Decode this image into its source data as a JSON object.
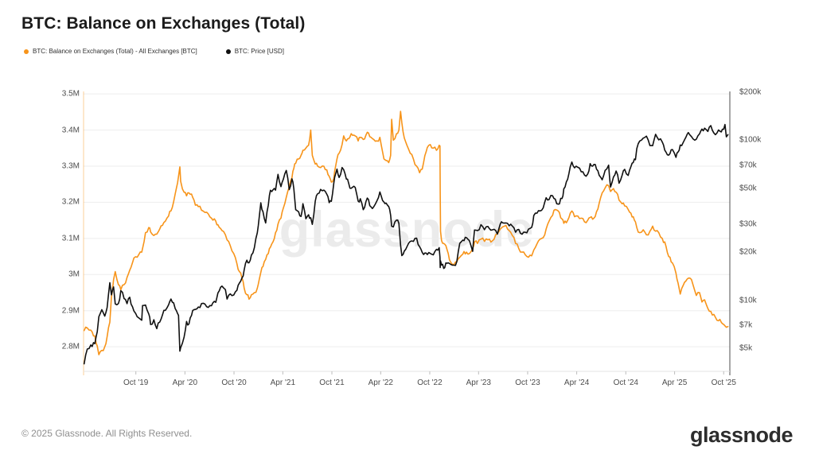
{
  "header": {
    "title": "BTC: Balance on Exchanges (Total)"
  },
  "watermark": {
    "text": "glassnode"
  },
  "footer": {
    "copyright": "© 2025 Glassnode. All Rights Reserved.",
    "brand": "glassnode"
  },
  "chart_data": {
    "type": "line",
    "title": "BTC: Balance on Exchanges (Total)",
    "grid": {
      "horizontal": true,
      "color": "#ededed"
    },
    "x_axis": {
      "scale": "time",
      "domain": [
        "2019-03-20",
        "2025-10-24"
      ],
      "ticks": [
        {
          "label": "Oct '19",
          "date": "2019-10-01"
        },
        {
          "label": "Apr '20",
          "date": "2020-04-01"
        },
        {
          "label": "Oct '20",
          "date": "2020-10-01"
        },
        {
          "label": "Apr '21",
          "date": "2021-04-01"
        },
        {
          "label": "Oct '21",
          "date": "2021-10-01"
        },
        {
          "label": "Apr '22",
          "date": "2022-04-01"
        },
        {
          "label": "Oct '22",
          "date": "2022-10-01"
        },
        {
          "label": "Apr '23",
          "date": "2023-04-01"
        },
        {
          "label": "Oct '23",
          "date": "2023-10-01"
        },
        {
          "label": "Apr '24",
          "date": "2024-04-01"
        },
        {
          "label": "Oct '24",
          "date": "2024-10-01"
        },
        {
          "label": "Apr '25",
          "date": "2025-04-01"
        },
        {
          "label": "Oct '25",
          "date": "2025-10-01"
        }
      ]
    },
    "y_left": {
      "name": "Balance on Exchanges",
      "unit": "M BTC",
      "scale": "linear",
      "domain": [
        2.732,
        3.507
      ],
      "ticks": [
        {
          "label": "3.5M",
          "value": 3.5
        },
        {
          "label": "3.4M",
          "value": 3.4
        },
        {
          "label": "3.3M",
          "value": 3.3
        },
        {
          "label": "3.2M",
          "value": 3.2
        },
        {
          "label": "3.1M",
          "value": 3.1
        },
        {
          "label": "3M",
          "value": 3.0
        },
        {
          "label": "2.9M",
          "value": 2.9
        },
        {
          "label": "2.8M",
          "value": 2.8
        }
      ]
    },
    "y_right": {
      "name": "Price",
      "unit": "USD",
      "scale": "log",
      "domain": [
        3590,
        202000
      ],
      "ticks": [
        {
          "label": "$200k",
          "value": 200000
        },
        {
          "label": "$100k",
          "value": 100000
        },
        {
          "label": "$70k",
          "value": 70000
        },
        {
          "label": "$50k",
          "value": 50000
        },
        {
          "label": "$30k",
          "value": 30000
        },
        {
          "label": "$20k",
          "value": 20000
        },
        {
          "label": "$10k",
          "value": 10000
        },
        {
          "label": "$7k",
          "value": 7000
        },
        {
          "label": "$5k",
          "value": 5000
        }
      ]
    },
    "series": [
      {
        "name": "BTC: Balance on Exchanges (Total) - All Exchanges [BTC]",
        "axis": "left",
        "color": "#f7941a",
        "width": 1.6
      },
      {
        "name": "BTC: Price [USD]",
        "axis": "right",
        "color": "#101010",
        "width": 1.6
      }
    ],
    "rows_format": [
      "date",
      "balance_mbtc",
      "price_usd"
    ],
    "rows": [
      [
        "2019-03-22",
        2.845,
        4000
      ],
      [
        "2019-04-03",
        2.852,
        4950
      ],
      [
        "2019-04-16",
        2.846,
        5250
      ],
      [
        "2019-05-01",
        2.83,
        5350
      ],
      [
        "2019-05-10",
        2.802,
        6350
      ],
      [
        "2019-05-16",
        2.778,
        7880
      ],
      [
        "2019-05-27",
        2.79,
        8720
      ],
      [
        "2019-06-07",
        2.8,
        7950
      ],
      [
        "2019-06-16",
        2.828,
        8990
      ],
      [
        "2019-06-26",
        2.868,
        12870
      ],
      [
        "2019-07-02",
        2.938,
        10800
      ],
      [
        "2019-07-10",
        2.986,
        12100
      ],
      [
        "2019-07-16",
        3.008,
        9480
      ],
      [
        "2019-07-28",
        2.972,
        9530
      ],
      [
        "2019-08-06",
        2.958,
        11470
      ],
      [
        "2019-08-18",
        2.972,
        10230
      ],
      [
        "2019-08-29",
        2.992,
        9510
      ],
      [
        "2019-09-08",
        3.012,
        10440
      ],
      [
        "2019-09-24",
        3.046,
        8550
      ],
      [
        "2019-10-06",
        3.048,
        7870
      ],
      [
        "2019-10-23",
        3.062,
        7500
      ],
      [
        "2019-10-26",
        3.072,
        9250
      ],
      [
        "2019-11-06",
        3.116,
        9330
      ],
      [
        "2019-11-18",
        3.13,
        8210
      ],
      [
        "2019-11-25",
        3.118,
        7050
      ],
      [
        "2019-12-07",
        3.108,
        7550
      ],
      [
        "2019-12-18",
        3.112,
        6640
      ],
      [
        "2019-12-29",
        3.126,
        7290
      ],
      [
        "2020-01-08",
        3.136,
        8080
      ],
      [
        "2020-01-19",
        3.148,
        8640
      ],
      [
        "2020-01-31",
        3.162,
        9350
      ],
      [
        "2020-02-09",
        3.176,
        10160
      ],
      [
        "2020-02-19",
        3.202,
        9610
      ],
      [
        "2020-03-01",
        3.242,
        8540
      ],
      [
        "2020-03-08",
        3.272,
        8040
      ],
      [
        "2020-03-13",
        3.298,
        4800
      ],
      [
        "2020-03-16",
        3.258,
        5050
      ],
      [
        "2020-03-29",
        3.228,
        5880
      ],
      [
        "2020-04-07",
        3.218,
        7360
      ],
      [
        "2020-04-16",
        3.226,
        7100
      ],
      [
        "2020-04-30",
        3.214,
        8620
      ],
      [
        "2020-05-10",
        3.192,
        8760
      ],
      [
        "2020-05-21",
        3.188,
        9060
      ],
      [
        "2020-06-02",
        3.178,
        9520
      ],
      [
        "2020-06-15",
        3.172,
        9450
      ],
      [
        "2020-06-27",
        3.168,
        9010
      ],
      [
        "2020-07-09",
        3.156,
        9230
      ],
      [
        "2020-07-25",
        3.148,
        9700
      ],
      [
        "2020-08-02",
        3.138,
        11100
      ],
      [
        "2020-08-17",
        3.122,
        12250
      ],
      [
        "2020-08-30",
        3.11,
        11650
      ],
      [
        "2020-09-05",
        3.096,
        10170
      ],
      [
        "2020-09-17",
        3.08,
        10950
      ],
      [
        "2020-09-30",
        3.058,
        10780
      ],
      [
        "2020-10-12",
        3.03,
        11530
      ],
      [
        "2020-10-21",
        3.008,
        12800
      ],
      [
        "2020-10-31",
        2.99,
        13800
      ],
      [
        "2020-11-08",
        2.962,
        15480
      ],
      [
        "2020-11-18",
        2.944,
        17800
      ],
      [
        "2020-11-26",
        2.932,
        17150
      ],
      [
        "2020-12-05",
        2.944,
        19160
      ],
      [
        "2020-12-16",
        2.95,
        21300
      ],
      [
        "2020-12-27",
        2.962,
        26400
      ],
      [
        "2021-01-03",
        2.986,
        33000
      ],
      [
        "2021-01-09",
        3.006,
        40600
      ],
      [
        "2021-01-17",
        3.022,
        35800
      ],
      [
        "2021-01-27",
        3.042,
        30400
      ],
      [
        "2021-02-06",
        3.058,
        39250
      ],
      [
        "2021-02-14",
        3.076,
        48700
      ],
      [
        "2021-02-23",
        3.09,
        48900
      ],
      [
        "2021-03-05",
        3.116,
        48800
      ],
      [
        "2021-03-14",
        3.14,
        61200
      ],
      [
        "2021-03-25",
        3.156,
        51300
      ],
      [
        "2021-04-03",
        3.184,
        57100
      ],
      [
        "2021-04-14",
        3.214,
        64800
      ],
      [
        "2021-04-25",
        3.242,
        49100
      ],
      [
        "2021-05-05",
        3.268,
        57400
      ],
      [
        "2021-05-12",
        3.294,
        49700
      ],
      [
        "2021-05-19",
        3.308,
        36800
      ],
      [
        "2021-05-30",
        3.32,
        35700
      ],
      [
        "2021-06-08",
        3.33,
        33400
      ],
      [
        "2021-06-15",
        3.344,
        40100
      ],
      [
        "2021-06-26",
        3.35,
        32300
      ],
      [
        "2021-07-06",
        3.358,
        34200
      ],
      [
        "2021-07-14",
        3.4,
        32800
      ],
      [
        "2021-07-20",
        3.33,
        29800
      ],
      [
        "2021-07-31",
        3.306,
        41600
      ],
      [
        "2021-08-09",
        3.3,
        46300
      ],
      [
        "2021-08-20",
        3.296,
        49300
      ],
      [
        "2021-09-01",
        3.3,
        48800
      ],
      [
        "2021-09-12",
        3.29,
        46000
      ],
      [
        "2021-09-21",
        3.272,
        40700
      ],
      [
        "2021-09-29",
        3.256,
        41500
      ],
      [
        "2021-10-08",
        3.266,
        53900
      ],
      [
        "2021-10-15",
        3.3,
        61600
      ],
      [
        "2021-10-20",
        3.32,
        66000
      ],
      [
        "2021-10-28",
        3.336,
        58500
      ],
      [
        "2021-11-08",
        3.36,
        67500
      ],
      [
        "2021-11-14",
        3.384,
        65500
      ],
      [
        "2021-11-24",
        3.37,
        57200
      ],
      [
        "2021-12-03",
        3.376,
        53600
      ],
      [
        "2021-12-12",
        3.39,
        50100
      ],
      [
        "2021-12-27",
        3.384,
        50700
      ],
      [
        "2022-01-07",
        3.37,
        41600
      ],
      [
        "2022-01-15",
        3.38,
        43100
      ],
      [
        "2022-01-26",
        3.374,
        36800
      ],
      [
        "2022-02-10",
        3.394,
        43500
      ],
      [
        "2022-02-24",
        3.38,
        38300
      ],
      [
        "2022-03-06",
        3.374,
        38400
      ],
      [
        "2022-03-18",
        3.37,
        41800
      ],
      [
        "2022-03-29",
        3.38,
        47500
      ],
      [
        "2022-04-13",
        3.32,
        41100
      ],
      [
        "2022-04-21",
        3.316,
        40500
      ],
      [
        "2022-05-01",
        3.31,
        38500
      ],
      [
        "2022-05-08",
        3.33,
        34000
      ],
      [
        "2022-05-12",
        3.43,
        29000
      ],
      [
        "2022-05-18",
        3.372,
        28700
      ],
      [
        "2022-05-30",
        3.39,
        31700
      ],
      [
        "2022-06-08",
        3.4,
        30200
      ],
      [
        "2022-06-14",
        3.452,
        22100
      ],
      [
        "2022-06-19",
        3.42,
        19000
      ],
      [
        "2022-06-28",
        3.378,
        20300
      ],
      [
        "2022-07-08",
        3.358,
        21600
      ],
      [
        "2022-07-20",
        3.336,
        23300
      ],
      [
        "2022-08-01",
        3.32,
        23300
      ],
      [
        "2022-08-13",
        3.3,
        24400
      ],
      [
        "2022-08-24",
        3.282,
        21600
      ],
      [
        "2022-09-03",
        3.292,
        19900
      ],
      [
        "2022-09-08",
        3.31,
        19300
      ],
      [
        "2022-09-22",
        3.352,
        19300
      ],
      [
        "2022-10-03",
        3.36,
        19600
      ],
      [
        "2022-10-14",
        3.35,
        19200
      ],
      [
        "2022-10-26",
        3.344,
        20800
      ],
      [
        "2022-11-05",
        3.358,
        21300
      ],
      [
        "2022-11-08",
        3.356,
        18500
      ],
      [
        "2022-11-09",
        3.23,
        16000
      ],
      [
        "2022-11-10",
        3.12,
        17600
      ],
      [
        "2022-11-14",
        3.094,
        16600
      ],
      [
        "2022-11-22",
        3.086,
        15800
      ],
      [
        "2022-11-30",
        3.08,
        17100
      ],
      [
        "2022-12-09",
        3.058,
        17130
      ],
      [
        "2022-12-18",
        3.034,
        16750
      ],
      [
        "2022-12-31",
        3.028,
        16550
      ],
      [
        "2023-01-10",
        3.036,
        17450
      ],
      [
        "2023-01-21",
        3.048,
        22700
      ],
      [
        "2023-02-01",
        3.056,
        23750
      ],
      [
        "2023-02-15",
        3.062,
        24600
      ],
      [
        "2023-02-26",
        3.058,
        23550
      ],
      [
        "2023-03-10",
        3.072,
        20200
      ],
      [
        "2023-03-17",
        3.09,
        27450
      ],
      [
        "2023-03-28",
        3.086,
        27250
      ],
      [
        "2023-04-10",
        3.098,
        29650
      ],
      [
        "2023-04-23",
        3.092,
        27600
      ],
      [
        "2023-05-06",
        3.096,
        28900
      ],
      [
        "2023-05-17",
        3.09,
        27400
      ],
      [
        "2023-05-29",
        3.098,
        27750
      ],
      [
        "2023-06-10",
        3.112,
        25900
      ],
      [
        "2023-06-21",
        3.126,
        30000
      ],
      [
        "2023-06-30",
        3.132,
        30450
      ],
      [
        "2023-07-12",
        3.136,
        30400
      ],
      [
        "2023-07-24",
        3.122,
        29200
      ],
      [
        "2023-08-05",
        3.108,
        29050
      ],
      [
        "2023-08-17",
        3.086,
        26600
      ],
      [
        "2023-08-29",
        3.072,
        27700
      ],
      [
        "2023-09-10",
        3.062,
        25850
      ],
      [
        "2023-09-22",
        3.055,
        26600
      ],
      [
        "2023-10-04",
        3.048,
        27800
      ],
      [
        "2023-10-16",
        3.052,
        28500
      ],
      [
        "2023-10-24",
        3.068,
        33900
      ],
      [
        "2023-11-05",
        3.085,
        35000
      ],
      [
        "2023-11-16",
        3.098,
        36160
      ],
      [
        "2023-11-28",
        3.102,
        37800
      ],
      [
        "2023-12-09",
        3.126,
        43700
      ],
      [
        "2023-12-20",
        3.148,
        42600
      ],
      [
        "2024-01-02",
        3.164,
        45000
      ],
      [
        "2024-01-12",
        3.18,
        42800
      ],
      [
        "2024-01-23",
        3.176,
        39900
      ],
      [
        "2024-02-06",
        3.154,
        43200
      ],
      [
        "2024-02-13",
        3.142,
        49700
      ],
      [
        "2024-02-27",
        3.15,
        57000
      ],
      [
        "2024-03-08",
        3.17,
        68300
      ],
      [
        "2024-03-14",
        3.176,
        73100
      ],
      [
        "2024-03-24",
        3.16,
        67200
      ],
      [
        "2024-04-05",
        3.162,
        67800
      ],
      [
        "2024-04-18",
        3.156,
        63500
      ],
      [
        "2024-04-30",
        3.146,
        60600
      ],
      [
        "2024-05-12",
        3.15,
        61500
      ],
      [
        "2024-05-21",
        3.158,
        71400
      ],
      [
        "2024-06-04",
        3.156,
        70600
      ],
      [
        "2024-06-14",
        3.174,
        66000
      ],
      [
        "2024-06-24",
        3.198,
        60300
      ],
      [
        "2024-07-05",
        3.226,
        56600
      ],
      [
        "2024-07-16",
        3.24,
        64800
      ],
      [
        "2024-07-29",
        3.246,
        69900
      ],
      [
        "2024-08-05",
        3.23,
        51000
      ],
      [
        "2024-08-16",
        3.238,
        58900
      ],
      [
        "2024-08-26",
        3.228,
        64200
      ],
      [
        "2024-09-06",
        3.206,
        53900
      ],
      [
        "2024-09-17",
        3.196,
        60300
      ],
      [
        "2024-09-27",
        3.19,
        65800
      ],
      [
        "2024-10-10",
        3.18,
        60300
      ],
      [
        "2024-10-20",
        3.17,
        68400
      ],
      [
        "2024-10-29",
        3.16,
        72700
      ],
      [
        "2024-11-06",
        3.146,
        75600
      ],
      [
        "2024-11-11",
        3.13,
        88700
      ],
      [
        "2024-11-22",
        3.116,
        99000
      ],
      [
        "2024-12-05",
        3.124,
        103100
      ],
      [
        "2024-12-17",
        3.11,
        106100
      ],
      [
        "2024-12-30",
        3.12,
        92600
      ],
      [
        "2025-01-09",
        3.134,
        92500
      ],
      [
        "2025-01-20",
        3.12,
        109000
      ],
      [
        "2025-02-01",
        3.116,
        100600
      ],
      [
        "2025-02-14",
        3.1,
        97500
      ],
      [
        "2025-02-28",
        3.078,
        84300
      ],
      [
        "2025-03-10",
        3.05,
        80700
      ],
      [
        "2025-03-24",
        3.032,
        87500
      ],
      [
        "2025-04-06",
        3.004,
        78200
      ],
      [
        "2025-04-14",
        2.976,
        84500
      ],
      [
        "2025-04-22",
        2.946,
        93400
      ],
      [
        "2025-05-03",
        2.97,
        96900
      ],
      [
        "2025-05-13",
        2.982,
        104200
      ],
      [
        "2025-05-22",
        2.99,
        111700
      ],
      [
        "2025-06-03",
        2.986,
        105400
      ],
      [
        "2025-06-21",
        2.942,
        101500
      ],
      [
        "2025-07-03",
        2.95,
        109600
      ],
      [
        "2025-07-12",
        2.924,
        117500
      ],
      [
        "2025-07-22",
        2.93,
        119000
      ],
      [
        "2025-08-03",
        2.906,
        113600
      ],
      [
        "2025-08-14",
        2.898,
        123400
      ],
      [
        "2025-08-31",
        2.882,
        108300
      ],
      [
        "2025-09-12",
        2.872,
        115900
      ],
      [
        "2025-09-22",
        2.868,
        112800
      ],
      [
        "2025-10-01",
        2.862,
        117200
      ],
      [
        "2025-10-06",
        2.858,
        125400
      ],
      [
        "2025-10-11",
        2.854,
        105000
      ],
      [
        "2025-10-17",
        2.856,
        108500
      ]
    ]
  }
}
